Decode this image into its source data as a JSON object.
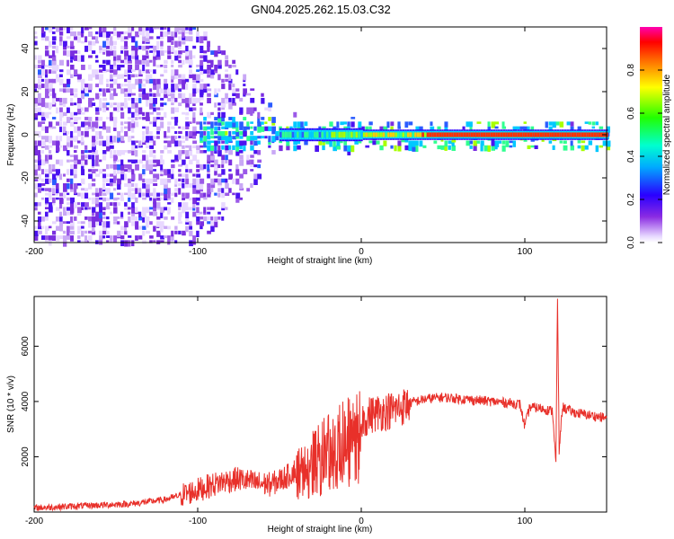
{
  "title": "GN04.2025.262.15.03.C32",
  "chart_data": [
    {
      "type": "heatmap",
      "xlabel": "Height of straight line (km)",
      "ylabel": "Frequency (Hz)",
      "xlim": [
        -200,
        150
      ],
      "ylim": [
        -50,
        50
      ],
      "xticks": [
        -200,
        -100,
        0,
        100
      ],
      "yticks": [
        -40,
        -20,
        0,
        20,
        40
      ],
      "colorbar": {
        "label": "Normalized spectral amplitude",
        "range": [
          0,
          1
        ],
        "ticks": [
          0.0,
          0.2,
          0.4,
          0.6,
          0.8
        ]
      },
      "description_values": {
        "carrier_frequency_hz": 0,
        "carrier_amplitude_above_0km": 0.9
      }
    },
    {
      "type": "line",
      "xlabel": "Height of straight line (km)",
      "ylabel": "SNR (10 * v/v)",
      "xlim": [
        -200,
        150
      ],
      "ylim": [
        0,
        7800
      ],
      "xticks": [
        -200,
        -100,
        0,
        100
      ],
      "yticks": [
        2000,
        4000,
        6000
      ],
      "series": [
        {
          "color": "#e8302a",
          "x": [
            -200,
            -180,
            -160,
            -140,
            -120,
            -105,
            -95,
            -85,
            -75,
            -65,
            -55,
            -45,
            -35,
            -25,
            -15,
            -10,
            -5,
            0,
            5,
            10,
            15,
            20,
            25,
            30,
            40,
            50,
            60,
            70,
            80,
            90,
            97,
            100,
            103,
            110,
            117,
            119,
            120,
            121,
            123,
            130,
            140,
            150
          ],
          "y": [
            150,
            200,
            250,
            300,
            450,
            700,
            900,
            1100,
            1200,
            1050,
            1000,
            1300,
            1800,
            2300,
            2700,
            2800,
            3000,
            3300,
            3500,
            3600,
            3650,
            3700,
            3800,
            3950,
            4100,
            4150,
            4100,
            4050,
            4000,
            3950,
            3900,
            3100,
            3800,
            3750,
            3650,
            1700,
            7700,
            2200,
            3800,
            3600,
            3500,
            3400
          ]
        }
      ]
    }
  ]
}
